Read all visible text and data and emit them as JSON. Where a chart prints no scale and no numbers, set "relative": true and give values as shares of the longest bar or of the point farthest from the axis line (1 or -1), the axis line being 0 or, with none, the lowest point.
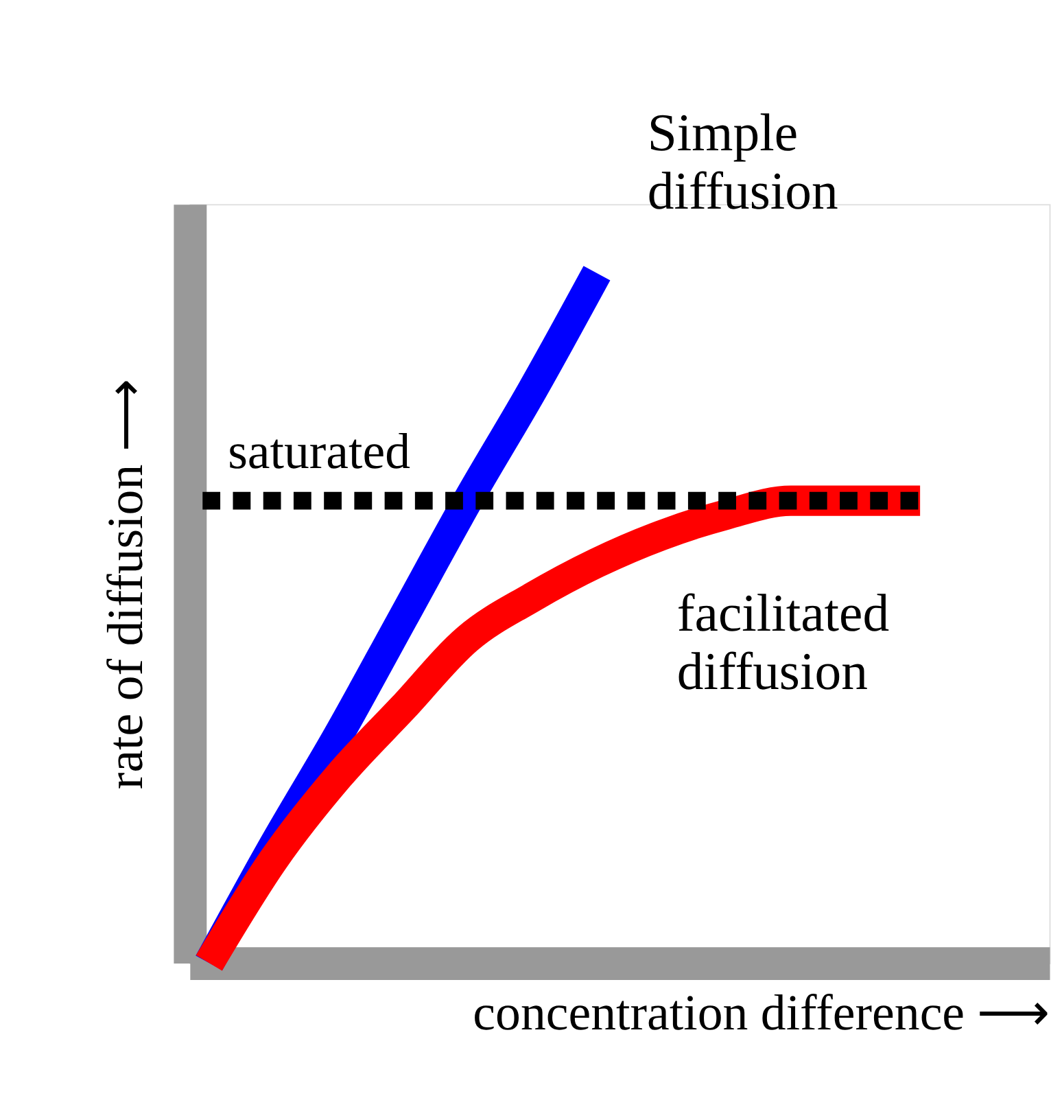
{
  "chart_data": {
    "type": "line",
    "relative": true,
    "xlabel": "concentration difference ⟶",
    "ylabel": "rate of diffusion ⟶",
    "categories": [
      null,
      null,
      null,
      null,
      null,
      null,
      null,
      null,
      null,
      null,
      null,
      null
    ],
    "series": [
      {
        "name": "Simple diffusion",
        "color": "#0000ff",
        "values": [
          0,
          0.17,
          0.33,
          0.5,
          0.67,
          0.83,
          1,
          null,
          null,
          null,
          null,
          null
        ]
      },
      {
        "name": "facilitated diffusion",
        "color": "#ff0000",
        "values": [
          0,
          0.15,
          0.27,
          0.37,
          0.47,
          0.53,
          0.58,
          0.62,
          0.65,
          0.67,
          0.67,
          0.67
        ]
      }
    ],
    "ref_lines": [
      {
        "axis": "y",
        "value": 0.67,
        "label": "saturated",
        "color": "#000000",
        "line_style": "dashed"
      }
    ],
    "grid": false
  }
}
